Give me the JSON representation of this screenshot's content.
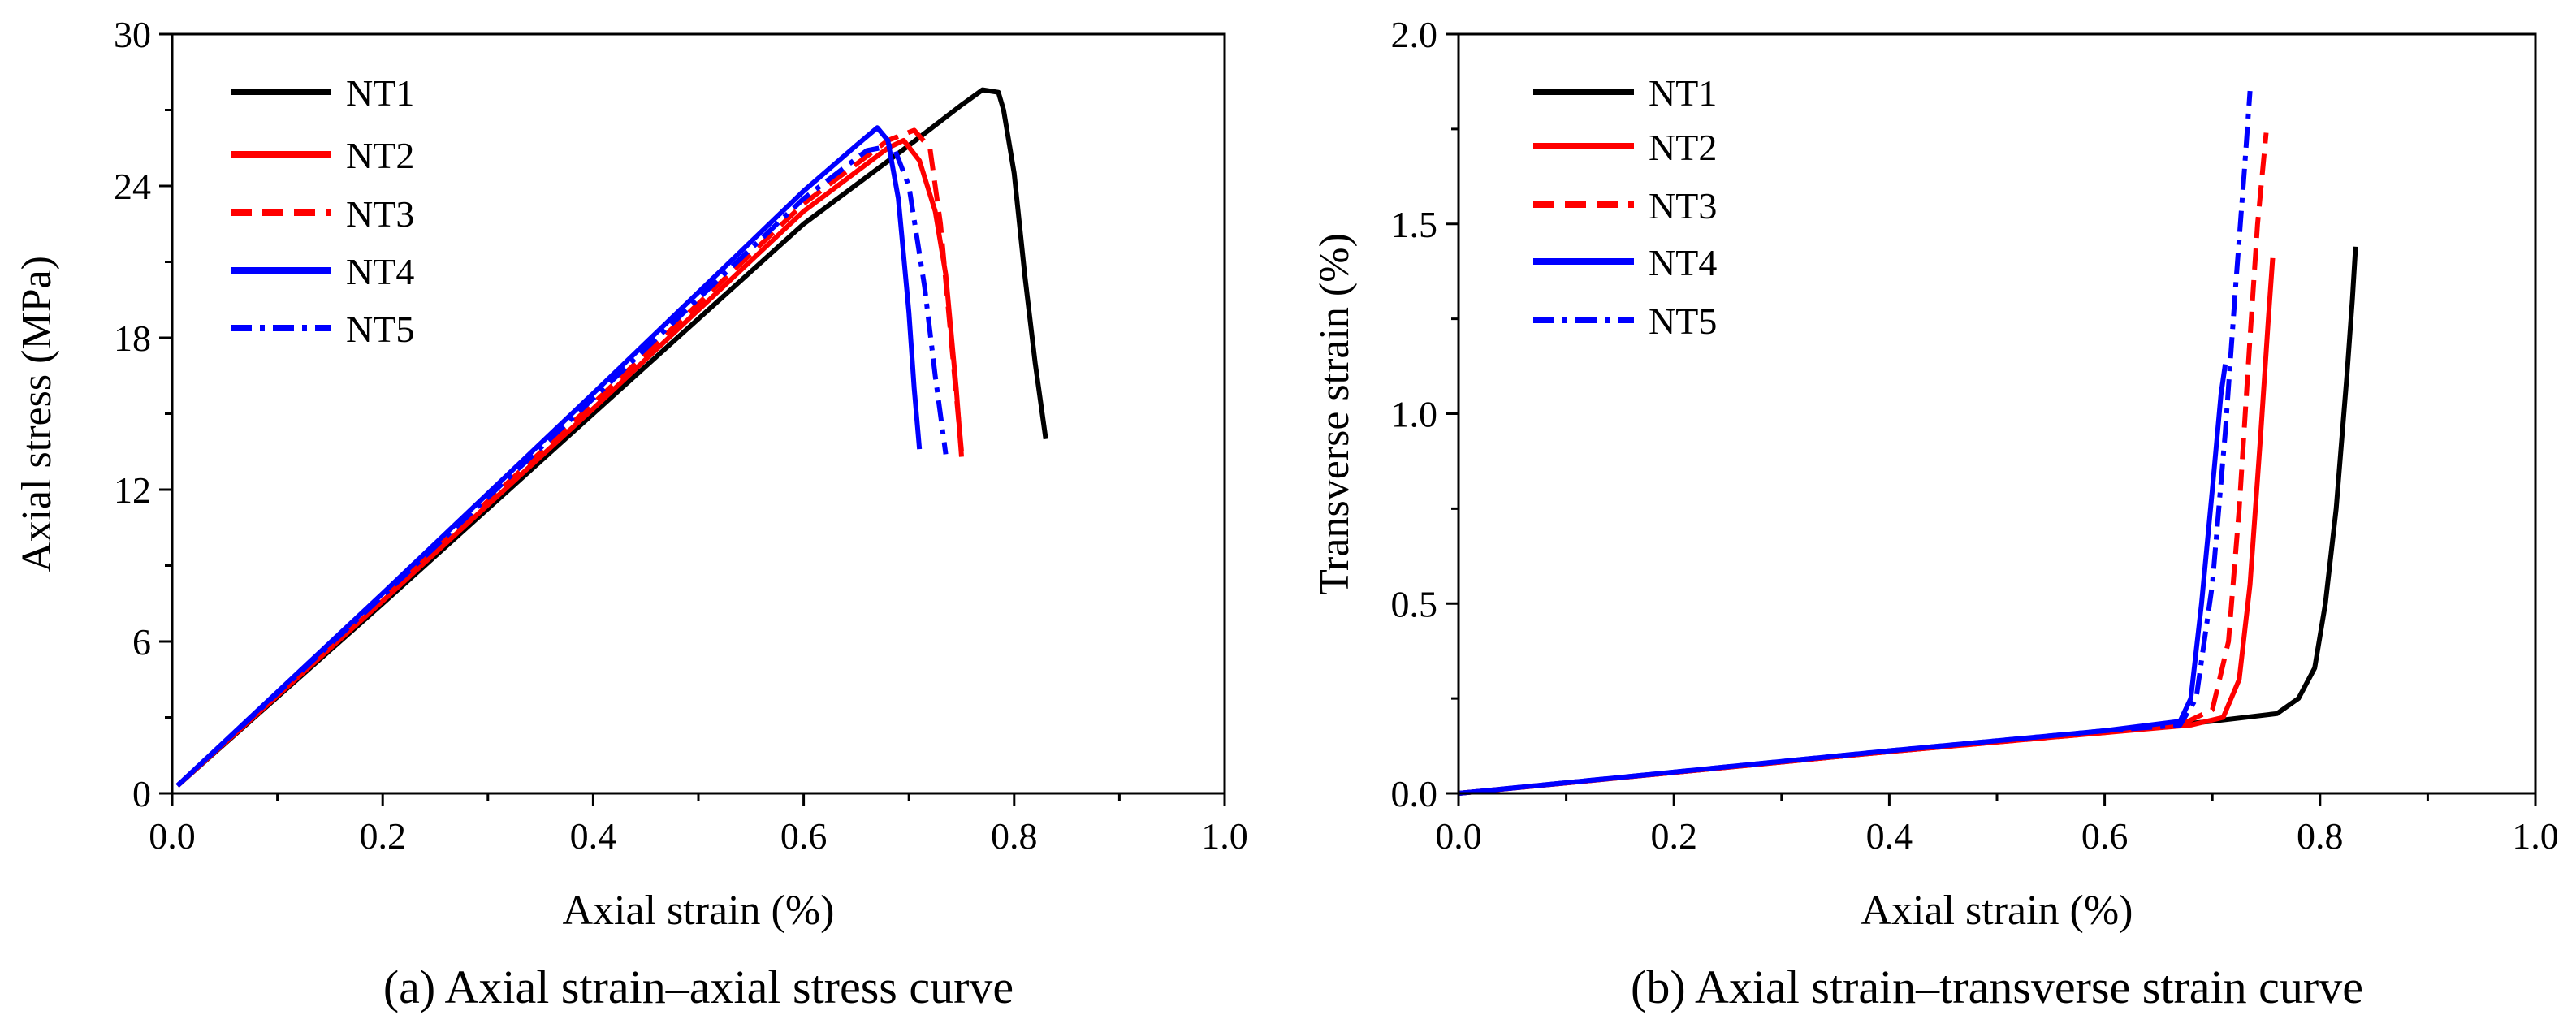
{
  "colors": {
    "NT1": "#000000",
    "NT2": "#ff0000",
    "NT3": "#ff0000",
    "NT4": "#0000ff",
    "NT5": "#0000ff"
  },
  "chart_data": [
    {
      "type": "line",
      "caption": "(a) Axial  strain–axial  stress curve",
      "xlabel": "Axial strain (%)",
      "ylabel": "Axial stress (MPa)",
      "xlim": [
        0,
        1.0
      ],
      "ylim": [
        0,
        30
      ],
      "xticks": [
        0.0,
        0.2,
        0.4,
        0.6,
        0.8,
        1.0
      ],
      "xtick_labels": [
        "0.0",
        "0.2",
        "0.4",
        "0.6",
        "0.8",
        "1.0"
      ],
      "yticks": [
        0,
        6,
        12,
        18,
        24,
        30
      ],
      "ytick_labels": [
        "0",
        "6",
        "12",
        "18",
        "24",
        "30"
      ],
      "legend_position": "top-left",
      "series": [
        {
          "name": "NT1",
          "color": "#000000",
          "dash": "solid",
          "x": [
            0.005,
            0.2,
            0.4,
            0.6,
            0.7,
            0.75,
            0.77,
            0.785,
            0.79,
            0.8,
            0.81,
            0.82,
            0.825,
            0.83
          ],
          "y": [
            0.3,
            7.5,
            15.0,
            22.5,
            25.6,
            27.2,
            27.8,
            27.7,
            27.0,
            24.5,
            20.5,
            17.0,
            15.5,
            14.0
          ]
        },
        {
          "name": "NT2",
          "color": "#ff0000",
          "dash": "solid",
          "x": [
            0.005,
            0.2,
            0.4,
            0.6,
            0.68,
            0.695,
            0.71,
            0.725,
            0.735,
            0.745,
            0.75
          ],
          "y": [
            0.3,
            7.6,
            15.2,
            23.0,
            25.5,
            25.8,
            25.0,
            23.0,
            20.5,
            16.0,
            13.3
          ]
        },
        {
          "name": "NT3",
          "color": "#ff0000",
          "dash": "dash",
          "x": [
            0.005,
            0.2,
            0.4,
            0.6,
            0.68,
            0.705,
            0.72,
            0.73,
            0.74,
            0.75
          ],
          "y": [
            0.3,
            7.7,
            15.4,
            23.3,
            25.8,
            26.2,
            25.5,
            22.5,
            18.0,
            13.5
          ]
        },
        {
          "name": "NT4",
          "color": "#0000ff",
          "dash": "solid",
          "x": [
            0.005,
            0.2,
            0.4,
            0.6,
            0.65,
            0.67,
            0.68,
            0.69,
            0.7,
            0.705,
            0.71
          ],
          "y": [
            0.3,
            7.9,
            15.8,
            23.8,
            25.6,
            26.3,
            25.8,
            23.5,
            19.0,
            16.0,
            13.6
          ]
        },
        {
          "name": "NT5",
          "color": "#0000ff",
          "dash": "dashdot",
          "x": [
            0.005,
            0.2,
            0.4,
            0.6,
            0.66,
            0.685,
            0.7,
            0.715,
            0.725,
            0.735
          ],
          "y": [
            0.3,
            7.8,
            15.6,
            23.5,
            25.4,
            25.6,
            24.0,
            20.0,
            16.5,
            13.4
          ]
        }
      ]
    },
    {
      "type": "line",
      "caption": "(b) Axial  strain–transverse strain curve",
      "xlabel": "Axial strain (%)",
      "ylabel": "Transverse strain (%)",
      "xlim": [
        0,
        1.0
      ],
      "ylim": [
        0,
        2.0
      ],
      "xticks": [
        0.0,
        0.2,
        0.4,
        0.6,
        0.8,
        1.0
      ],
      "xtick_labels": [
        "0.0",
        "0.2",
        "0.4",
        "0.6",
        "0.8",
        "1.0"
      ],
      "yticks": [
        0.0,
        0.5,
        1.0,
        1.5,
        2.0
      ],
      "ytick_labels": [
        "0.0",
        "0.5",
        "1.0",
        "1.5",
        "2.0"
      ],
      "legend_position": "top-left",
      "series": [
        {
          "name": "NT1",
          "color": "#000000",
          "dash": "solid",
          "x": [
            0.0,
            0.2,
            0.4,
            0.6,
            0.7,
            0.76,
            0.78,
            0.795,
            0.805,
            0.815,
            0.825,
            0.83,
            0.833
          ],
          "y": [
            0.0,
            0.055,
            0.11,
            0.162,
            0.19,
            0.21,
            0.25,
            0.33,
            0.5,
            0.75,
            1.1,
            1.3,
            1.44
          ]
        },
        {
          "name": "NT2",
          "color": "#ff0000",
          "dash": "solid",
          "x": [
            0.0,
            0.2,
            0.4,
            0.6,
            0.68,
            0.71,
            0.725,
            0.735,
            0.745,
            0.752,
            0.756
          ],
          "y": [
            0.0,
            0.055,
            0.11,
            0.16,
            0.18,
            0.2,
            0.3,
            0.55,
            0.95,
            1.25,
            1.41
          ]
        },
        {
          "name": "NT3",
          "color": "#ff0000",
          "dash": "dash",
          "x": [
            0.0,
            0.2,
            0.4,
            0.6,
            0.67,
            0.7,
            0.715,
            0.725,
            0.735,
            0.742,
            0.75
          ],
          "y": [
            0.0,
            0.055,
            0.11,
            0.16,
            0.18,
            0.22,
            0.4,
            0.75,
            1.2,
            1.5,
            1.74
          ]
        },
        {
          "name": "NT4",
          "color": "#0000ff",
          "dash": "solid",
          "x": [
            0.0,
            0.2,
            0.4,
            0.6,
            0.67,
            0.68,
            0.69,
            0.7,
            0.708,
            0.712
          ],
          "y": [
            0.0,
            0.056,
            0.112,
            0.165,
            0.19,
            0.25,
            0.5,
            0.8,
            1.05,
            1.13
          ]
        },
        {
          "name": "NT5",
          "color": "#0000ff",
          "dash": "dashdot",
          "x": [
            0.0,
            0.2,
            0.4,
            0.6,
            0.67,
            0.685,
            0.7,
            0.712,
            0.722,
            0.73,
            0.735
          ],
          "y": [
            0.0,
            0.056,
            0.112,
            0.165,
            0.18,
            0.25,
            0.55,
            0.95,
            1.35,
            1.65,
            1.85
          ]
        }
      ]
    }
  ]
}
